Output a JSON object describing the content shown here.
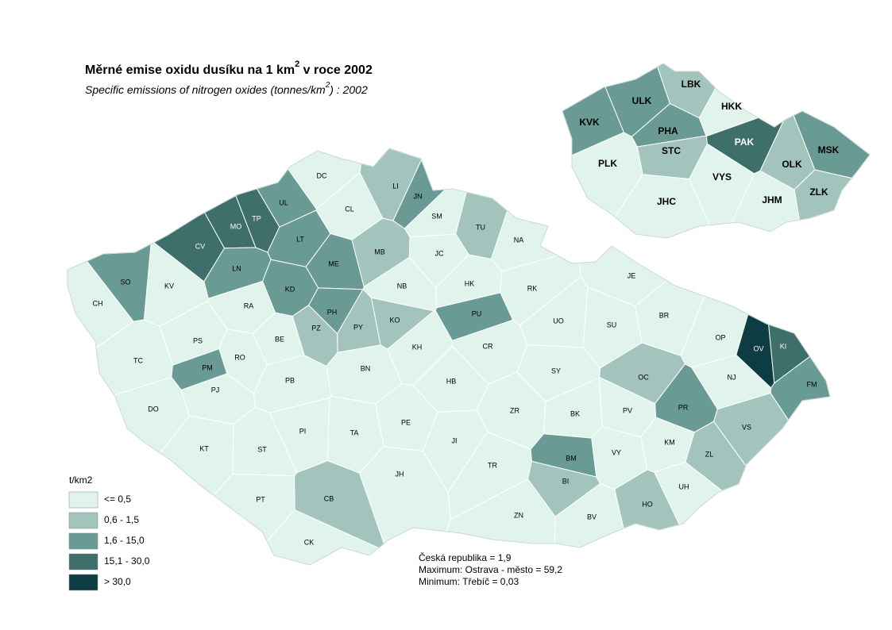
{
  "title": {
    "main": "Měrné emise oxidu dusíku na 1 km",
    "sup": "2",
    "end": " v roce 2002"
  },
  "subtitle": {
    "main": "Specific emissions of nitrogen oxides (tonnes/km",
    "sup": "2",
    "end": ") : 2002"
  },
  "legend": {
    "title": "t/km2",
    "items": [
      {
        "label": "<= 0,5",
        "color": "#e0f4ec"
      },
      {
        "label": "0,6 - 1,5",
        "color": "#a3c4bc"
      },
      {
        "label": "1,6 - 15,0",
        "color": "#6a9a94"
      },
      {
        "label": "15,1 - 30,0",
        "color": "#3f6f6b"
      },
      {
        "label": "> 30,0",
        "color": "#0d3c43"
      }
    ]
  },
  "notes": [
    "Česká republika = 1,9",
    "Maximum: Ostrava - město  = 59,2",
    "Minimum: Třebíč  = 0,03"
  ],
  "districts": [
    {
      "label": "DC",
      "color": "#e0f4ec"
    },
    {
      "label": "CL",
      "color": "#e0f4ec"
    },
    {
      "label": "LI",
      "color": "#a3c4bc"
    },
    {
      "label": "JN",
      "color": "#6a9a94"
    },
    {
      "label": "SM",
      "color": "#e0f4ec"
    },
    {
      "label": "TU",
      "color": "#a3c4bc"
    },
    {
      "label": "NA",
      "color": "#e0f4ec"
    },
    {
      "label": "UL",
      "color": "#6a9a94"
    },
    {
      "label": "TP",
      "color": "#3f6f6b"
    },
    {
      "label": "MO",
      "color": "#3f6f6b"
    },
    {
      "label": "CV",
      "color": "#3f6f6b"
    },
    {
      "label": "LT",
      "color": "#6a9a94"
    },
    {
      "label": "ME",
      "color": "#6a9a94"
    },
    {
      "label": "MB",
      "color": "#a3c4bc"
    },
    {
      "label": "JC",
      "color": "#e0f4ec"
    },
    {
      "label": "LN",
      "color": "#6a9a94"
    },
    {
      "label": "SO",
      "color": "#6a9a94"
    },
    {
      "label": "KV",
      "color": "#e0f4ec"
    },
    {
      "label": "CH",
      "color": "#e0f4ec"
    },
    {
      "label": "KD",
      "color": "#6a9a94"
    },
    {
      "label": "NB",
      "color": "#e0f4ec"
    },
    {
      "label": "HK",
      "color": "#e0f4ec"
    },
    {
      "label": "RK",
      "color": "#e0f4ec"
    },
    {
      "label": "JE",
      "color": "#e0f4ec"
    },
    {
      "label": "RA",
      "color": "#e0f4ec"
    },
    {
      "label": "PH",
      "color": "#6a9a94"
    },
    {
      "label": "PZ",
      "color": "#a3c4bc"
    },
    {
      "label": "PY",
      "color": "#a3c4bc"
    },
    {
      "label": "KO",
      "color": "#a3c4bc"
    },
    {
      "label": "PU",
      "color": "#6a9a94"
    },
    {
      "label": "UO",
      "color": "#e0f4ec"
    },
    {
      "label": "SU",
      "color": "#e0f4ec"
    },
    {
      "label": "BR",
      "color": "#e0f4ec"
    },
    {
      "label": "OP",
      "color": "#e0f4ec"
    },
    {
      "label": "OV",
      "color": "#0d3c43"
    },
    {
      "label": "KI",
      "color": "#3f6f6b"
    },
    {
      "label": "PS",
      "color": "#e0f4ec"
    },
    {
      "label": "BE",
      "color": "#e0f4ec"
    },
    {
      "label": "KH",
      "color": "#e0f4ec"
    },
    {
      "label": "CR",
      "color": "#e0f4ec"
    },
    {
      "label": "TC",
      "color": "#e0f4ec"
    },
    {
      "label": "RO",
      "color": "#e0f4ec"
    },
    {
      "label": "PM",
      "color": "#6a9a94"
    },
    {
      "label": "BN",
      "color": "#e0f4ec"
    },
    {
      "label": "SY",
      "color": "#e0f4ec"
    },
    {
      "label": "OC",
      "color": "#a3c4bc"
    },
    {
      "label": "NJ",
      "color": "#e0f4ec"
    },
    {
      "label": "PB",
      "color": "#e0f4ec"
    },
    {
      "label": "HB",
      "color": "#e0f4ec"
    },
    {
      "label": "FM",
      "color": "#6a9a94"
    },
    {
      "label": "PJ",
      "color": "#e0f4ec"
    },
    {
      "label": "DO",
      "color": "#e0f4ec"
    },
    {
      "label": "ZR",
      "color": "#e0f4ec"
    },
    {
      "label": "BK",
      "color": "#e0f4ec"
    },
    {
      "label": "PR",
      "color": "#6a9a94"
    },
    {
      "label": "PV",
      "color": "#e0f4ec"
    },
    {
      "label": "VS",
      "color": "#a3c4bc"
    },
    {
      "label": "PI",
      "color": "#e0f4ec"
    },
    {
      "label": "PE",
      "color": "#e0f4ec"
    },
    {
      "label": "TA",
      "color": "#e0f4ec"
    },
    {
      "label": "JI",
      "color": "#e0f4ec"
    },
    {
      "label": "KM",
      "color": "#e0f4ec"
    },
    {
      "label": "KT",
      "color": "#e0f4ec"
    },
    {
      "label": "ST",
      "color": "#e0f4ec"
    },
    {
      "label": "VY",
      "color": "#e0f4ec"
    },
    {
      "label": "ZL",
      "color": "#a3c4bc"
    },
    {
      "label": "BM",
      "color": "#6a9a94"
    },
    {
      "label": "JH",
      "color": "#e0f4ec"
    },
    {
      "label": "TR",
      "color": "#e0f4ec"
    },
    {
      "label": "BI",
      "color": "#a3c4bc"
    },
    {
      "label": "UH",
      "color": "#e0f4ec"
    },
    {
      "label": "PT",
      "color": "#e0f4ec"
    },
    {
      "label": "CB",
      "color": "#a3c4bc"
    },
    {
      "label": "HO",
      "color": "#a3c4bc"
    },
    {
      "label": "ZN",
      "color": "#e0f4ec"
    },
    {
      "label": "BV",
      "color": "#e0f4ec"
    },
    {
      "label": "CK",
      "color": "#e0f4ec"
    }
  ],
  "regions": [
    {
      "label": "ULK",
      "color": "#6a9a94"
    },
    {
      "label": "LBK",
      "color": "#a3c4bc"
    },
    {
      "label": "KVK",
      "color": "#6a9a94"
    },
    {
      "label": "HKK",
      "color": "#e0f4ec"
    },
    {
      "label": "PHA",
      "color": "#6a9a94"
    },
    {
      "label": "STC",
      "color": "#a3c4bc"
    },
    {
      "label": "PAK",
      "color": "#3f6f6b"
    },
    {
      "label": "MSK",
      "color": "#6a9a94"
    },
    {
      "label": "PLK",
      "color": "#e0f4ec"
    },
    {
      "label": "OLK",
      "color": "#a3c4bc"
    },
    {
      "label": "VYS",
      "color": "#e0f4ec"
    },
    {
      "label": "ZLK",
      "color": "#a3c4bc"
    },
    {
      "label": "JHC",
      "color": "#e0f4ec"
    },
    {
      "label": "JHM",
      "color": "#e0f4ec"
    }
  ]
}
